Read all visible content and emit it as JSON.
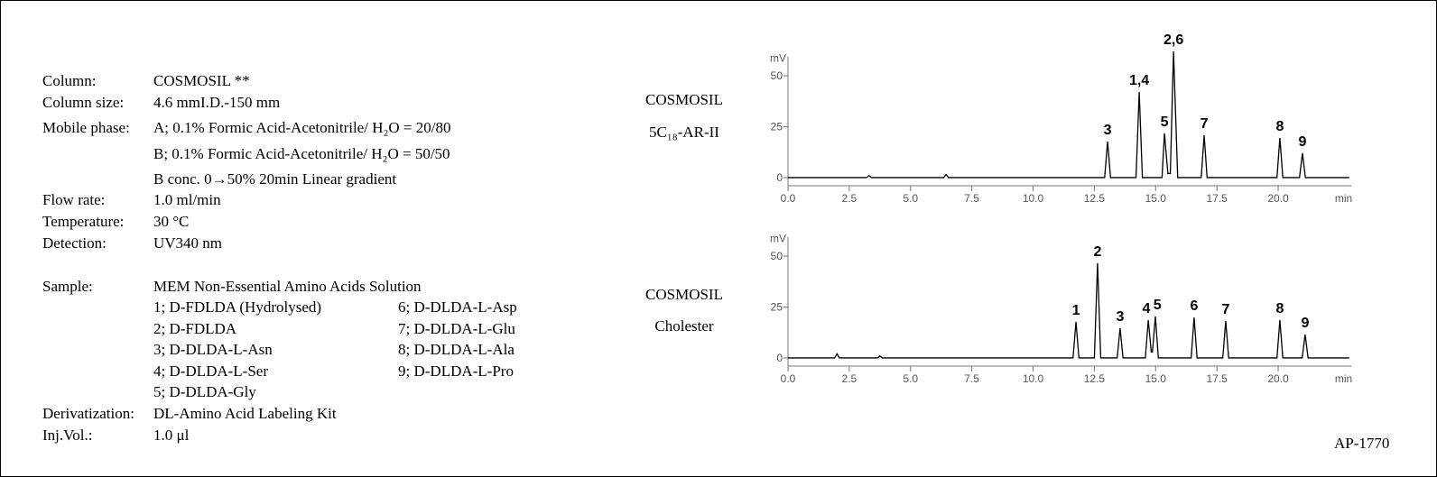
{
  "conditions": [
    {
      "label": "Column:",
      "value": [
        "COSMOSIL  **"
      ]
    },
    {
      "label": "Column size:",
      "value": [
        "4.6 mmI.D.-150 mm"
      ]
    },
    {
      "label": "Mobile phase:",
      "value": [
        "A; 0.1% Formic Acid-Acetonitrile/ H₂O = 20/80",
        "B; 0.1% Formic Acid-Acetonitrile/ H₂O = 50/50",
        "B conc. 0→50% 20min Linear gradient"
      ]
    },
    {
      "label": "Flow rate:",
      "value": [
        "1.0 ml/min"
      ]
    },
    {
      "label": "Temperature:",
      "value": [
        "30 °C"
      ]
    },
    {
      "label": "Detection:",
      "value": [
        "UV340 nm"
      ]
    }
  ],
  "sample": {
    "label": "Sample:",
    "value": "MEM Non-Essential Amino Acids Solution",
    "items": [
      "1; D-FDLDA (Hydrolysed)",
      "2; D-FDLDA",
      "3; D-DLDA-L-Asn",
      "4; D-DLDA-L-Ser",
      "5; D-DLDA-Gly",
      "6; D-DLDA-L-Asp",
      "7; D-DLDA-L-Glu",
      "8; D-DLDA-L-Ala",
      "9; D-DLDA-L-Pro"
    ]
  },
  "conditions_after": [
    {
      "label": "Derivatization:",
      "value": [
        "DL-Amino Acid Labeling Kit"
      ]
    },
    {
      "label": "Inj.Vol.:",
      "value": [
        "1.0 μl"
      ]
    }
  ],
  "footer": "AP-1770",
  "chart_data": [
    {
      "type": "line",
      "label_lines": [
        "COSMOSIL",
        "5C₁₈-AR-II"
      ],
      "color": "#000000",
      "x_label": "min",
      "y_label": "mV",
      "x": [
        0,
        3.2,
        3.3,
        3.4,
        6.35,
        6.45,
        6.55,
        12.92,
        13.04,
        13.16,
        14.2,
        14.33,
        14.46,
        15.26,
        15.36,
        15.5,
        15.6,
        15.73,
        15.9,
        16.86,
        16.98,
        17.1,
        19.95,
        20.07,
        20.19,
        20.87,
        20.99,
        21.11,
        22.9
      ],
      "values": [
        0,
        0,
        1,
        0,
        0,
        1.5,
        0,
        0,
        17.7,
        0,
        0,
        42,
        0,
        0,
        21.7,
        2,
        2,
        62,
        0,
        0,
        20.8,
        0,
        0,
        19.5,
        0,
        0,
        12,
        0,
        0
      ],
      "annotations": [
        {
          "text": "3",
          "x": 13.04,
          "y": 17.7
        },
        {
          "text": "1,4",
          "x": 14.33,
          "y": 42
        },
        {
          "text": "5",
          "x": 15.36,
          "y": 21.7
        },
        {
          "text": "2,6",
          "x": 15.73,
          "y": 62
        },
        {
          "text": "7",
          "x": 16.98,
          "y": 20.8
        },
        {
          "text": "8",
          "x": 20.07,
          "y": 19.5
        },
        {
          "text": "9",
          "x": 20.99,
          "y": 12
        }
      ],
      "xlim": [
        0,
        23
      ],
      "ylim": [
        -4,
        63
      ],
      "xticks": [
        {
          "value": 0,
          "label": "0.0"
        },
        2.5,
        {
          "value": 5,
          "label": "5.0"
        },
        7.5,
        {
          "value": 10,
          "label": "10.0"
        },
        12.5,
        {
          "value": 15,
          "label": "15.0"
        },
        17.5,
        {
          "value": 20,
          "label": "20.0"
        }
      ],
      "yticks": [
        0,
        25,
        50
      ]
    },
    {
      "type": "line",
      "label_lines": [
        "COSMOSIL",
        "Cholester"
      ],
      "color": "#000000",
      "x_label": "min",
      "y_label": "mV",
      "x": [
        0,
        1.9,
        2.0,
        2.1,
        3.65,
        3.75,
        3.85,
        11.63,
        11.75,
        11.87,
        12.5,
        12.63,
        12.76,
        13.43,
        13.55,
        13.67,
        14.58,
        14.7,
        14.82,
        14.87,
        14.99,
        15.11,
        16.45,
        16.57,
        16.69,
        17.74,
        17.86,
        17.98,
        19.95,
        20.07,
        20.19,
        20.98,
        21.1,
        21.22,
        22.9
      ],
      "values": [
        0,
        0,
        2,
        0,
        0,
        1,
        0,
        0,
        17.7,
        0,
        0,
        46.5,
        0,
        0,
        14.6,
        0,
        0,
        18.6,
        3,
        3,
        20.4,
        0,
        0,
        19.9,
        0,
        0,
        18.1,
        0,
        0,
        18.6,
        0,
        0,
        11.5,
        0,
        0
      ],
      "annotations": [
        {
          "text": "1",
          "x": 11.75,
          "y": 17.7
        },
        {
          "text": "2",
          "x": 12.63,
          "y": 46.5
        },
        {
          "text": "3",
          "x": 13.55,
          "y": 14.6
        },
        {
          "text": "4",
          "x": 14.62,
          "y": 18.6
        },
        {
          "text": "5",
          "x": 15.07,
          "y": 20.4
        },
        {
          "text": "6",
          "x": 16.57,
          "y": 19.9
        },
        {
          "text": "7",
          "x": 17.86,
          "y": 18.1
        },
        {
          "text": "8",
          "x": 20.07,
          "y": 18.6
        },
        {
          "text": "9",
          "x": 21.1,
          "y": 11.5
        }
      ],
      "xlim": [
        0,
        23
      ],
      "ylim": [
        -4,
        63
      ],
      "xticks": [
        {
          "value": 0,
          "label": "0.0"
        },
        2.5,
        {
          "value": 5,
          "label": "5.0"
        },
        7.5,
        {
          "value": 10,
          "label": "10.0"
        },
        12.5,
        {
          "value": 15,
          "label": "15.0"
        },
        17.5,
        {
          "value": 20,
          "label": "20.0"
        }
      ],
      "yticks": [
        0,
        25,
        50
      ]
    }
  ]
}
